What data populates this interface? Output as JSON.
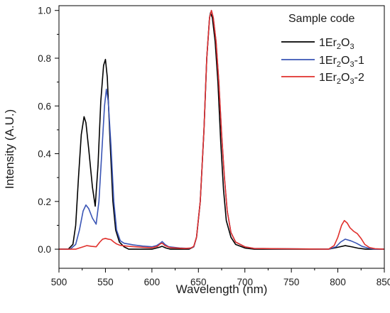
{
  "chart_data": {
    "type": "line",
    "xlabel": "Wavelength (nm)",
    "ylabel": "Intensity (A.U.)",
    "xlim": [
      500,
      850
    ],
    "ylim": [
      -0.08,
      1.02
    ],
    "x_ticks": [
      "500",
      "550",
      "600",
      "650",
      "700",
      "750",
      "800",
      "850"
    ],
    "y_ticks": [
      "0.0",
      "0.2",
      "0.4",
      "0.6",
      "0.8",
      "1.0"
    ],
    "grid": false,
    "legend": {
      "title": "Sample code",
      "placement": "top-right",
      "entries": [
        {
          "base": "1Er",
          "sub1": "2",
          "mid": "O",
          "sub2": "3",
          "suffix": ""
        },
        {
          "base": "1Er",
          "sub1": "2",
          "mid": "O",
          "sub2": "3",
          "suffix": "-1"
        },
        {
          "base": "1Er",
          "sub1": "2",
          "mid": "O",
          "sub2": "3",
          "suffix": "-2"
        }
      ]
    },
    "series": [
      {
        "name": "1Er2O3",
        "color": "#000000",
        "points": [
          [
            500,
            0.0
          ],
          [
            510,
            0.0
          ],
          [
            515,
            0.02
          ],
          [
            518,
            0.1
          ],
          [
            521,
            0.3
          ],
          [
            524,
            0.48
          ],
          [
            527,
            0.555
          ],
          [
            529,
            0.53
          ],
          [
            532,
            0.42
          ],
          [
            536,
            0.26
          ],
          [
            539,
            0.18
          ],
          [
            542,
            0.35
          ],
          [
            545,
            0.62
          ],
          [
            548,
            0.77
          ],
          [
            550,
            0.795
          ],
          [
            552,
            0.72
          ],
          [
            555,
            0.45
          ],
          [
            558,
            0.2
          ],
          [
            561,
            0.08
          ],
          [
            565,
            0.03
          ],
          [
            570,
            0.01
          ],
          [
            575,
            0.0
          ],
          [
            600,
            0.0
          ],
          [
            608,
            0.008
          ],
          [
            611,
            0.012
          ],
          [
            615,
            0.005
          ],
          [
            620,
            0.0
          ],
          [
            640,
            0.0
          ],
          [
            645,
            0.01
          ],
          [
            648,
            0.05
          ],
          [
            652,
            0.2
          ],
          [
            656,
            0.5
          ],
          [
            659,
            0.8
          ],
          [
            662,
            0.97
          ],
          [
            663,
            0.99
          ],
          [
            665,
            0.97
          ],
          [
            668,
            0.87
          ],
          [
            671,
            0.7
          ],
          [
            674,
            0.45
          ],
          [
            677,
            0.25
          ],
          [
            680,
            0.12
          ],
          [
            685,
            0.05
          ],
          [
            690,
            0.02
          ],
          [
            700,
            0.005
          ],
          [
            710,
            0.0
          ],
          [
            790,
            0.0
          ],
          [
            800,
            0.008
          ],
          [
            808,
            0.015
          ],
          [
            815,
            0.01
          ],
          [
            822,
            0.004
          ],
          [
            830,
            0.0
          ],
          [
            850,
            0.0
          ]
        ]
      },
      {
        "name": "1Er2O3-1",
        "color": "#3a55b5",
        "points": [
          [
            500,
            0.0
          ],
          [
            512,
            0.0
          ],
          [
            518,
            0.02
          ],
          [
            522,
            0.08
          ],
          [
            526,
            0.16
          ],
          [
            529,
            0.185
          ],
          [
            532,
            0.17
          ],
          [
            536,
            0.13
          ],
          [
            540,
            0.105
          ],
          [
            543,
            0.2
          ],
          [
            546,
            0.4
          ],
          [
            549,
            0.6
          ],
          [
            551,
            0.67
          ],
          [
            553,
            0.62
          ],
          [
            556,
            0.43
          ],
          [
            559,
            0.2
          ],
          [
            562,
            0.08
          ],
          [
            566,
            0.035
          ],
          [
            570,
            0.025
          ],
          [
            580,
            0.018
          ],
          [
            590,
            0.013
          ],
          [
            600,
            0.01
          ],
          [
            605,
            0.015
          ],
          [
            609,
            0.025
          ],
          [
            611,
            0.032
          ],
          [
            614,
            0.02
          ],
          [
            618,
            0.01
          ],
          [
            630,
            0.005
          ],
          [
            640,
            0.003
          ],
          [
            645,
            0.01
          ],
          [
            648,
            0.05
          ],
          [
            652,
            0.2
          ],
          [
            656,
            0.5
          ],
          [
            659,
            0.8
          ],
          [
            662,
            0.97
          ],
          [
            664,
            1.0
          ],
          [
            666,
            0.97
          ],
          [
            669,
            0.87
          ],
          [
            672,
            0.7
          ],
          [
            675,
            0.48
          ],
          [
            678,
            0.3
          ],
          [
            681,
            0.16
          ],
          [
            685,
            0.07
          ],
          [
            690,
            0.03
          ],
          [
            700,
            0.01
          ],
          [
            710,
            0.003
          ],
          [
            790,
            0.0
          ],
          [
            798,
            0.01
          ],
          [
            803,
            0.03
          ],
          [
            808,
            0.042
          ],
          [
            814,
            0.035
          ],
          [
            820,
            0.025
          ],
          [
            826,
            0.012
          ],
          [
            833,
            0.004
          ],
          [
            840,
            0.0
          ],
          [
            850,
            0.0
          ]
        ]
      },
      {
        "name": "1Er2O3-2",
        "color": "#e0302c",
        "points": [
          [
            500,
            0.0
          ],
          [
            518,
            0.0
          ],
          [
            522,
            0.005
          ],
          [
            526,
            0.01
          ],
          [
            530,
            0.015
          ],
          [
            535,
            0.012
          ],
          [
            540,
            0.01
          ],
          [
            544,
            0.03
          ],
          [
            547,
            0.042
          ],
          [
            550,
            0.045
          ],
          [
            553,
            0.042
          ],
          [
            556,
            0.04
          ],
          [
            559,
            0.03
          ],
          [
            562,
            0.022
          ],
          [
            566,
            0.016
          ],
          [
            575,
            0.012
          ],
          [
            590,
            0.008
          ],
          [
            600,
            0.006
          ],
          [
            606,
            0.012
          ],
          [
            609,
            0.022
          ],
          [
            611,
            0.025
          ],
          [
            614,
            0.015
          ],
          [
            620,
            0.006
          ],
          [
            635,
            0.003
          ],
          [
            642,
            0.005
          ],
          [
            645,
            0.012
          ],
          [
            648,
            0.05
          ],
          [
            652,
            0.2
          ],
          [
            656,
            0.5
          ],
          [
            659,
            0.8
          ],
          [
            662,
            0.97
          ],
          [
            664,
            1.0
          ],
          [
            666,
            0.97
          ],
          [
            669,
            0.87
          ],
          [
            672,
            0.7
          ],
          [
            675,
            0.48
          ],
          [
            678,
            0.3
          ],
          [
            681,
            0.16
          ],
          [
            685,
            0.07
          ],
          [
            690,
            0.03
          ],
          [
            700,
            0.01
          ],
          [
            710,
            0.003
          ],
          [
            790,
            0.0
          ],
          [
            796,
            0.015
          ],
          [
            800,
            0.05
          ],
          [
            804,
            0.1
          ],
          [
            807,
            0.12
          ],
          [
            810,
            0.11
          ],
          [
            813,
            0.09
          ],
          [
            817,
            0.075
          ],
          [
            821,
            0.065
          ],
          [
            825,
            0.045
          ],
          [
            829,
            0.02
          ],
          [
            834,
            0.007
          ],
          [
            840,
            0.002
          ],
          [
            850,
            0.0
          ]
        ]
      }
    ]
  }
}
